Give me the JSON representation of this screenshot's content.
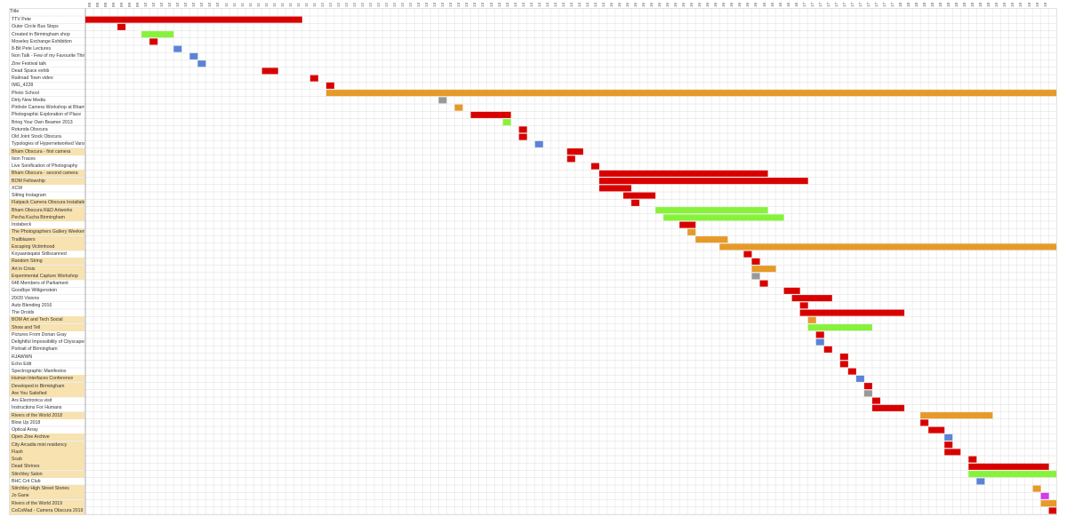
{
  "header": {
    "title_column": "Title"
  },
  "colors": {
    "red": "#d90000",
    "orange": "#e69a28",
    "green": "#86f33a",
    "blue": "#5b84d9",
    "gray": "#999999",
    "magenta": "#d63ae9",
    "highlight": "#f7e2b0"
  },
  "timeline": {
    "column_labels": [
      "08",
      "08",
      "08",
      "09",
      "09",
      "09",
      "09",
      "10",
      "10",
      "10",
      "10",
      "10",
      "10",
      "10",
      "10",
      "10",
      "10",
      "11",
      "11",
      "11",
      "11",
      "11",
      "11",
      "11",
      "11",
      "11",
      "11",
      "11",
      "11",
      "12",
      "12",
      "12",
      "12",
      "12",
      "12",
      "12",
      "12",
      "12",
      "12",
      "12",
      "12",
      "13",
      "13",
      "13",
      "13",
      "13",
      "13",
      "13",
      "13",
      "13",
      "13",
      "13",
      "13",
      "14",
      "14",
      "14",
      "14",
      "14",
      "14",
      "14",
      "14",
      "14",
      "14",
      "14",
      "14",
      "15",
      "15",
      "15",
      "15",
      "15",
      "15",
      "15",
      "15",
      "15",
      "15",
      "15",
      "15",
      "16",
      "16",
      "16",
      "16",
      "16",
      "16",
      "16",
      "16",
      "16",
      "16",
      "16",
      "16",
      "17",
      "17",
      "17",
      "17",
      "17",
      "17",
      "17",
      "17",
      "17",
      "17",
      "17",
      "17",
      "18",
      "18",
      "18",
      "18",
      "18",
      "18",
      "18",
      "18",
      "18",
      "18",
      "18",
      "18",
      "19",
      "19",
      "19",
      "19",
      "19",
      "19",
      "19",
      "19",
      "19"
    ]
  },
  "rows": [
    {
      "title": "TTV Pete",
      "highlight": false,
      "bars": [
        {
          "start": 0,
          "len": 27,
          "color": "red"
        }
      ]
    },
    {
      "title": "Outer Circle Bus Stops",
      "highlight": false,
      "bars": [
        {
          "start": 4,
          "len": 1,
          "color": "red"
        }
      ]
    },
    {
      "title": "Created in Birmingham shop",
      "highlight": false,
      "bars": [
        {
          "start": 7,
          "len": 4,
          "color": "green"
        }
      ]
    },
    {
      "title": "Moseley Exchange Exhibition",
      "highlight": false,
      "bars": [
        {
          "start": 8,
          "len": 1,
          "color": "red"
        }
      ]
    },
    {
      "title": "8-Bit Pete Lectures",
      "highlight": false,
      "bars": [
        {
          "start": 11,
          "len": 1,
          "color": "blue"
        }
      ]
    },
    {
      "title": "Ikon Talk - Few of my Favourite Things",
      "highlight": false,
      "bars": [
        {
          "start": 13,
          "len": 1,
          "color": "blue"
        }
      ]
    },
    {
      "title": "Zine Festival talk",
      "highlight": false,
      "bars": [
        {
          "start": 14,
          "len": 1,
          "color": "blue"
        }
      ]
    },
    {
      "title": "Dead Space exhib",
      "highlight": false,
      "bars": [
        {
          "start": 22,
          "len": 2,
          "color": "red"
        }
      ]
    },
    {
      "title": "Railroad Town video",
      "highlight": false,
      "bars": [
        {
          "start": 28,
          "len": 1,
          "color": "red"
        }
      ]
    },
    {
      "title": "IMG_4228",
      "highlight": false,
      "bars": [
        {
          "start": 30,
          "len": 1,
          "color": "red"
        }
      ]
    },
    {
      "title": "Photo School",
      "highlight": false,
      "bars": [
        {
          "start": 30,
          "len": 91,
          "color": "orange"
        }
      ]
    },
    {
      "title": "Dirty New Media",
      "highlight": false,
      "bars": [
        {
          "start": 44,
          "len": 1,
          "color": "gray"
        }
      ]
    },
    {
      "title": "Pinhole Camera Workshop at Bham",
      "highlight": false,
      "bars": [
        {
          "start": 46,
          "len": 1,
          "color": "orange"
        }
      ]
    },
    {
      "title": "Photographic Exploration of Place",
      "highlight": false,
      "bars": [
        {
          "start": 48,
          "len": 5,
          "color": "red"
        }
      ]
    },
    {
      "title": "Bring Your Own Beamer 2013",
      "highlight": false,
      "bars": [
        {
          "start": 52,
          "len": 1,
          "color": "green"
        }
      ]
    },
    {
      "title": "Rotunda Obscura",
      "highlight": false,
      "bars": [
        {
          "start": 54,
          "len": 1,
          "color": "red"
        }
      ]
    },
    {
      "title": "Old Joint Stock Obscura",
      "highlight": false,
      "bars": [
        {
          "start": 54,
          "len": 1,
          "color": "red"
        }
      ]
    },
    {
      "title": "Typologies of Hypernetworked Vans",
      "highlight": false,
      "bars": [
        {
          "start": 56,
          "len": 1,
          "color": "blue"
        }
      ]
    },
    {
      "title": "Bham Obscura - first camera",
      "highlight": true,
      "bars": [
        {
          "start": 60,
          "len": 2,
          "color": "red"
        }
      ]
    },
    {
      "title": "Ikon Traces",
      "highlight": false,
      "bars": [
        {
          "start": 60,
          "len": 1,
          "color": "red"
        }
      ]
    },
    {
      "title": "Live Sonification of Photography",
      "highlight": false,
      "bars": [
        {
          "start": 63,
          "len": 1,
          "color": "red"
        }
      ]
    },
    {
      "title": "Bham Obscura - second camera",
      "highlight": true,
      "bars": [
        {
          "start": 64,
          "len": 21,
          "color": "red"
        }
      ]
    },
    {
      "title": "BOM Fellowship",
      "highlight": true,
      "bars": [
        {
          "start": 64,
          "len": 26,
          "color": "red"
        }
      ]
    },
    {
      "title": "XCW",
      "highlight": false,
      "bars": [
        {
          "start": 64,
          "len": 4,
          "color": "red"
        }
      ]
    },
    {
      "title": "Sitting Instagram",
      "highlight": false,
      "bars": [
        {
          "start": 67,
          "len": 4,
          "color": "red"
        }
      ]
    },
    {
      "title": "Flatpack Camera Obscura Installation",
      "highlight": true,
      "bars": [
        {
          "start": 68,
          "len": 1,
          "color": "red"
        }
      ]
    },
    {
      "title": "Bham Obscura R&D Artworks",
      "highlight": true,
      "bars": [
        {
          "start": 71,
          "len": 14,
          "color": "green"
        }
      ]
    },
    {
      "title": "Pecha Kucha Birmingham",
      "highlight": true,
      "bars": [
        {
          "start": 72,
          "len": 15,
          "color": "green"
        }
      ]
    },
    {
      "title": "Instabeck",
      "highlight": false,
      "bars": [
        {
          "start": 74,
          "len": 2,
          "color": "red"
        }
      ]
    },
    {
      "title": "The Photographers Gallery Weekender",
      "highlight": true,
      "bars": [
        {
          "start": 75,
          "len": 1,
          "color": "orange"
        }
      ]
    },
    {
      "title": "Trailblazers",
      "highlight": true,
      "bars": [
        {
          "start": 76,
          "len": 4,
          "color": "orange"
        }
      ]
    },
    {
      "title": "Escaping Victimhood",
      "highlight": true,
      "bars": [
        {
          "start": 79,
          "len": 42,
          "color": "orange"
        }
      ]
    },
    {
      "title": "Koyaanisqatsi Stillscanned",
      "highlight": false,
      "bars": [
        {
          "start": 82,
          "len": 1,
          "color": "red"
        }
      ]
    },
    {
      "title": "Random String",
      "highlight": true,
      "bars": [
        {
          "start": 83,
          "len": 1,
          "color": "red"
        }
      ]
    },
    {
      "title": "Art in Crisis",
      "highlight": true,
      "bars": [
        {
          "start": 83,
          "len": 3,
          "color": "orange"
        }
      ]
    },
    {
      "title": "Experimental Capture Workshop",
      "highlight": true,
      "bars": [
        {
          "start": 83,
          "len": 1,
          "color": "gray"
        }
      ]
    },
    {
      "title": "648 Members of Parliament",
      "highlight": false,
      "bars": [
        {
          "start": 84,
          "len": 1,
          "color": "red"
        }
      ]
    },
    {
      "title": "Goodbye Wittgenstein",
      "highlight": false,
      "bars": [
        {
          "start": 87,
          "len": 2,
          "color": "red"
        }
      ]
    },
    {
      "title": "20/20 Visions",
      "highlight": false,
      "bars": [
        {
          "start": 88,
          "len": 5,
          "color": "red"
        }
      ]
    },
    {
      "title": "Auto Blending 2016",
      "highlight": false,
      "bars": [
        {
          "start": 89,
          "len": 1,
          "color": "red"
        }
      ]
    },
    {
      "title": "The Droids",
      "highlight": false,
      "bars": [
        {
          "start": 89,
          "len": 13,
          "color": "red"
        }
      ]
    },
    {
      "title": "BOM Art and Tech Social",
      "highlight": true,
      "bars": [
        {
          "start": 90,
          "len": 1,
          "color": "orange"
        }
      ]
    },
    {
      "title": "Show and Tell",
      "highlight": true,
      "bars": [
        {
          "start": 90,
          "len": 8,
          "color": "green"
        }
      ]
    },
    {
      "title": "Pictures From Dorian Gray",
      "highlight": false,
      "bars": [
        {
          "start": 91,
          "len": 1,
          "color": "red"
        }
      ]
    },
    {
      "title": "Delightful Impossibility of Cityscapes",
      "highlight": false,
      "bars": [
        {
          "start": 91,
          "len": 1,
          "color": "blue"
        }
      ]
    },
    {
      "title": "Portrait of Birmingham",
      "highlight": false,
      "bars": [
        {
          "start": 92,
          "len": 1,
          "color": "red"
        }
      ]
    },
    {
      "title": "RJAWWN",
      "highlight": false,
      "bars": [
        {
          "start": 94,
          "len": 1,
          "color": "red"
        }
      ]
    },
    {
      "title": "Echo Edit",
      "highlight": false,
      "bars": [
        {
          "start": 94,
          "len": 1,
          "color": "red"
        }
      ]
    },
    {
      "title": "Spectrographic Manifestos",
      "highlight": false,
      "bars": [
        {
          "start": 95,
          "len": 1,
          "color": "red"
        }
      ]
    },
    {
      "title": "Human Interfaces Conference",
      "highlight": true,
      "bars": [
        {
          "start": 96,
          "len": 1,
          "color": "blue"
        }
      ]
    },
    {
      "title": "Developed in Birmingham",
      "highlight": true,
      "bars": [
        {
          "start": 97,
          "len": 1,
          "color": "red"
        }
      ]
    },
    {
      "title": "Are You Satisfied",
      "highlight": true,
      "bars": [
        {
          "start": 97,
          "len": 1,
          "color": "gray"
        }
      ]
    },
    {
      "title": "Ars Electronica visit",
      "highlight": false,
      "bars": [
        {
          "start": 98,
          "len": 1,
          "color": "red"
        }
      ]
    },
    {
      "title": "Instructions For Humans",
      "highlight": false,
      "bars": [
        {
          "start": 98,
          "len": 4,
          "color": "red"
        }
      ]
    },
    {
      "title": "Rivers of the World 2018",
      "highlight": true,
      "bars": [
        {
          "start": 104,
          "len": 9,
          "color": "orange"
        }
      ]
    },
    {
      "title": "Blow Up 2018",
      "highlight": false,
      "bars": [
        {
          "start": 104,
          "len": 1,
          "color": "red"
        }
      ]
    },
    {
      "title": "Optical Array",
      "highlight": false,
      "bars": [
        {
          "start": 105,
          "len": 2,
          "color": "red"
        }
      ]
    },
    {
      "title": "Open Zine Archive",
      "highlight": true,
      "bars": [
        {
          "start": 107,
          "len": 1,
          "color": "blue"
        }
      ]
    },
    {
      "title": "City Arcadia mini residency",
      "highlight": true,
      "bars": [
        {
          "start": 107,
          "len": 1,
          "color": "red"
        }
      ]
    },
    {
      "title": "Flash",
      "highlight": true,
      "bars": [
        {
          "start": 107,
          "len": 2,
          "color": "red"
        }
      ]
    },
    {
      "title": "Scab",
      "highlight": true,
      "bars": [
        {
          "start": 110,
          "len": 1,
          "color": "red"
        }
      ]
    },
    {
      "title": "Dead Shrines",
      "highlight": true,
      "bars": [
        {
          "start": 110,
          "len": 10,
          "color": "red"
        }
      ]
    },
    {
      "title": "Stirchley Salon",
      "highlight": true,
      "bars": [
        {
          "start": 110,
          "len": 11,
          "color": "green"
        }
      ]
    },
    {
      "title": "BHC Crit Club",
      "highlight": false,
      "bars": [
        {
          "start": 111,
          "len": 1,
          "color": "blue"
        }
      ]
    },
    {
      "title": "Stirchley High Street Stories",
      "highlight": true,
      "bars": [
        {
          "start": 118,
          "len": 1,
          "color": "orange"
        }
      ]
    },
    {
      "title": "Jo Gane",
      "highlight": true,
      "bars": [
        {
          "start": 119,
          "len": 1,
          "color": "magenta"
        }
      ]
    },
    {
      "title": "Rivers of the World 2019",
      "highlight": true,
      "bars": [
        {
          "start": 119,
          "len": 2,
          "color": "orange"
        }
      ]
    },
    {
      "title": "CoCoMad - Camera Obscura 2019",
      "highlight": true,
      "bars": [
        {
          "start": 120,
          "len": 1,
          "color": "red"
        }
      ]
    }
  ]
}
